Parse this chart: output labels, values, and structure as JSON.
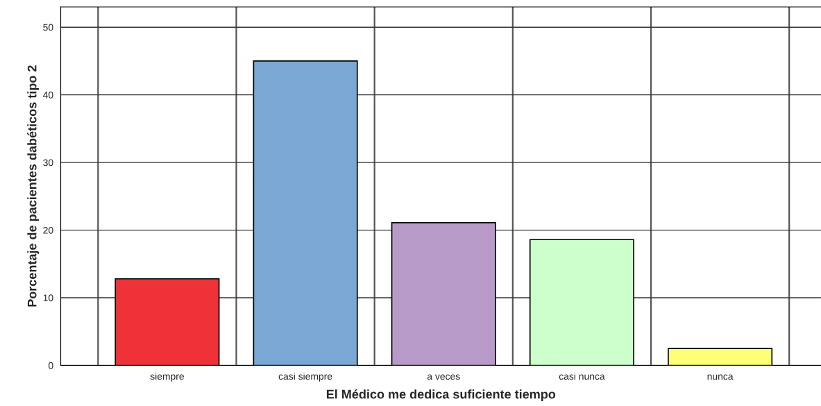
{
  "chart_data": {
    "type": "bar",
    "xlabel": "El Médico me dedica suficiente tiempo",
    "ylabel": "Porcentaje de pacientes dabéticos tipo 2",
    "categories": [
      "siempre",
      "casi siempre",
      "a veces",
      "casi nunca",
      "nunca"
    ],
    "values": [
      12.8,
      45.0,
      21.1,
      18.6,
      2.5
    ],
    "colors": [
      "#ee3237",
      "#7ba7d4",
      "#b89ac9",
      "#ccffcc",
      "#ffff77"
    ],
    "ylim": [
      0,
      53
    ],
    "yticks": [
      0,
      10,
      20,
      30,
      40,
      50
    ],
    "grid": true
  }
}
